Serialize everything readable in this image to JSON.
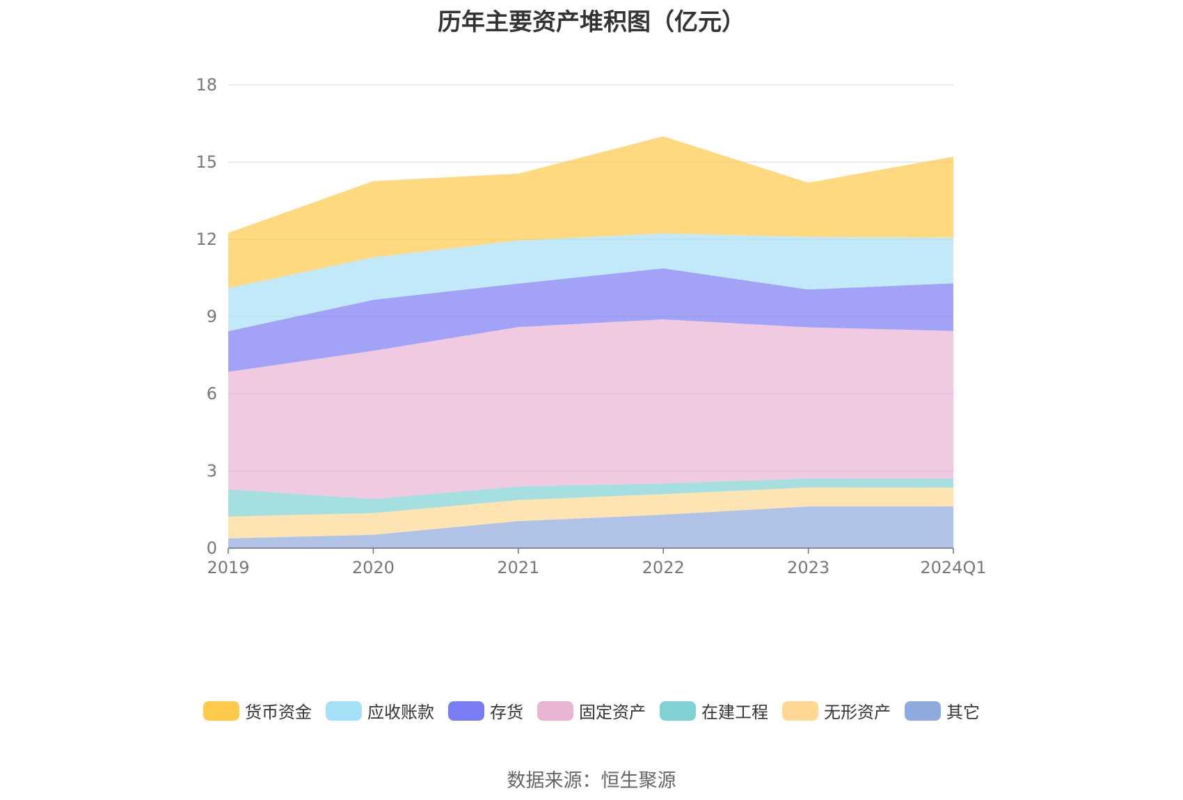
{
  "chart_data": {
    "type": "area",
    "stacked": true,
    "title": "历年主要资产堆积图（亿元）",
    "categories": [
      "2019",
      "2020",
      "2021",
      "2022",
      "2023",
      "2024Q1"
    ],
    "ylim": [
      0,
      18
    ],
    "yticks": [
      0,
      3,
      6,
      9,
      12,
      15,
      18
    ],
    "grid": true,
    "legend_position": "bottom",
    "series": [
      {
        "name": "其它",
        "color": "#8faadc",
        "values": [
          0.38,
          0.52,
          1.05,
          1.3,
          1.62,
          1.62
        ]
      },
      {
        "name": "无形资产",
        "color": "#ffd993",
        "values": [
          0.85,
          0.84,
          0.82,
          0.8,
          0.74,
          0.73
        ]
      },
      {
        "name": "在建工程",
        "color": "#80d2d3",
        "values": [
          1.06,
          0.55,
          0.53,
          0.41,
          0.35,
          0.35
        ]
      },
      {
        "name": "固定资产",
        "color": "#e8b4d4",
        "values": [
          4.56,
          5.76,
          6.19,
          6.38,
          5.87,
          5.74
        ]
      },
      {
        "name": "存货",
        "color": "#7a7cf4",
        "values": [
          1.58,
          1.98,
          1.69,
          1.98,
          1.47,
          1.85
        ]
      },
      {
        "name": "应收账款",
        "color": "#a6dff8",
        "values": [
          1.67,
          1.65,
          1.67,
          1.36,
          2.04,
          1.77
        ]
      },
      {
        "name": "货币资金",
        "color": "#ffc94a",
        "values": [
          2.15,
          2.96,
          2.6,
          3.77,
          2.11,
          3.15
        ]
      }
    ],
    "legend_order": [
      "货币资金",
      "应收账款",
      "存货",
      "固定资产",
      "在建工程",
      "无形资产",
      "其它"
    ]
  },
  "source_text": "数据来源：恒生聚源"
}
